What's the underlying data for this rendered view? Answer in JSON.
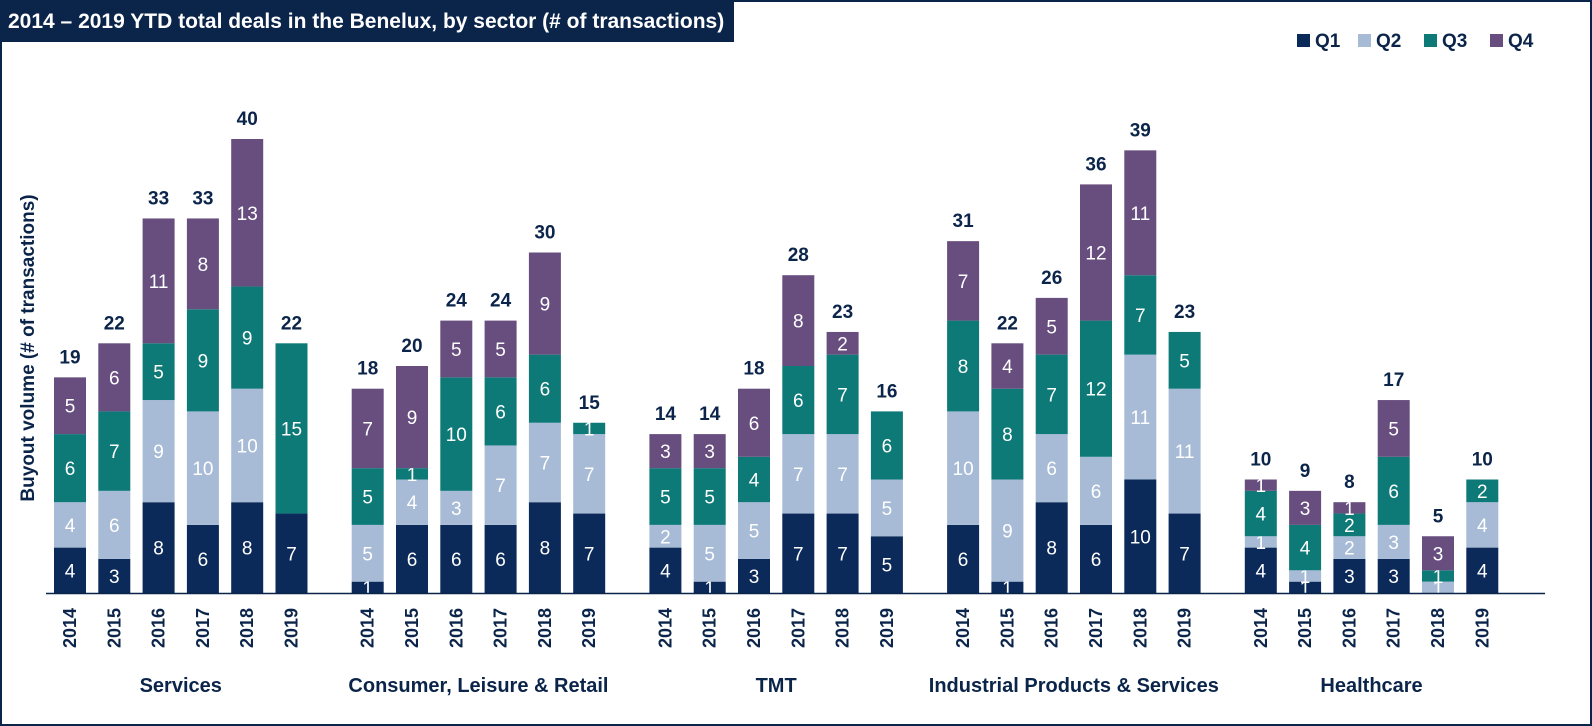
{
  "chart_data": {
    "type": "bar",
    "stacked": true,
    "title": "2014 – 2019 YTD total deals in the Benelux, by sector (# of transactions)",
    "ylabel": "Buyout volume (# of transactions)",
    "xlabel": "",
    "legend_position": "top-right",
    "grid": false,
    "ylim": [
      0,
      40
    ],
    "colors": {
      "Q1": "#0b2a59",
      "Q2": "#a7bbd6",
      "Q3": "#0e7a77",
      "Q4": "#674e7f"
    },
    "series_names": [
      "Q1",
      "Q2",
      "Q3",
      "Q4"
    ],
    "groups": [
      {
        "name": "Services",
        "bars": [
          {
            "year": "2014",
            "values": [
              4,
              4,
              6,
              5
            ],
            "total": 19
          },
          {
            "year": "2015",
            "values": [
              3,
              6,
              7,
              6
            ],
            "total": 22
          },
          {
            "year": "2016",
            "values": [
              8,
              9,
              5,
              11
            ],
            "total": 33
          },
          {
            "year": "2017",
            "values": [
              6,
              10,
              9,
              8
            ],
            "total": 33
          },
          {
            "year": "2018",
            "values": [
              8,
              10,
              9,
              13
            ],
            "total": 40
          },
          {
            "year": "2019",
            "values": [
              7,
              0,
              15,
              0
            ],
            "total": 22
          }
        ]
      },
      {
        "name": "Consumer, Leisure & Retail",
        "bars": [
          {
            "year": "2014",
            "values": [
              1,
              5,
              5,
              7
            ],
            "total": 18
          },
          {
            "year": "2015",
            "values": [
              6,
              4,
              1,
              9
            ],
            "total": 20
          },
          {
            "year": "2016",
            "values": [
              6,
              3,
              10,
              5
            ],
            "total": 24
          },
          {
            "year": "2017",
            "values": [
              6,
              7,
              6,
              5
            ],
            "total": 24
          },
          {
            "year": "2018",
            "values": [
              8,
              7,
              6,
              9
            ],
            "total": 30
          },
          {
            "year": "2019",
            "values": [
              7,
              7,
              1,
              0
            ],
            "total": 15
          }
        ]
      },
      {
        "name": "TMT",
        "bars": [
          {
            "year": "2014",
            "values": [
              4,
              2,
              5,
              3
            ],
            "total": 14
          },
          {
            "year": "2015",
            "values": [
              1,
              5,
              5,
              3
            ],
            "total": 14
          },
          {
            "year": "2016",
            "values": [
              3,
              5,
              4,
              6
            ],
            "total": 18
          },
          {
            "year": "2017",
            "values": [
              7,
              7,
              6,
              8
            ],
            "total": 28
          },
          {
            "year": "2018",
            "values": [
              7,
              7,
              7,
              2
            ],
            "total": 23
          },
          {
            "year": "2019",
            "values": [
              5,
              5,
              6,
              0
            ],
            "total": 16
          }
        ]
      },
      {
        "name": "Industrial Products & Services",
        "bars": [
          {
            "year": "2014",
            "values": [
              6,
              10,
              8,
              7
            ],
            "total": 31
          },
          {
            "year": "2015",
            "values": [
              1,
              9,
              8,
              4
            ],
            "total": 22
          },
          {
            "year": "2016",
            "values": [
              8,
              6,
              7,
              5
            ],
            "total": 26
          },
          {
            "year": "2017",
            "values": [
              6,
              6,
              12,
              12
            ],
            "total": 36
          },
          {
            "year": "2018",
            "values": [
              10,
              11,
              7,
              11
            ],
            "total": 39
          },
          {
            "year": "2019",
            "values": [
              7,
              11,
              5,
              0
            ],
            "total": 23
          }
        ]
      },
      {
        "name": "Healthcare",
        "bars": [
          {
            "year": "2014",
            "values": [
              4,
              1,
              4,
              1
            ],
            "total": 10
          },
          {
            "year": "2015",
            "values": [
              1,
              1,
              4,
              3
            ],
            "total": 9
          },
          {
            "year": "2016",
            "values": [
              3,
              2,
              2,
              1
            ],
            "total": 8
          },
          {
            "year": "2017",
            "values": [
              3,
              3,
              6,
              5
            ],
            "total": 17
          },
          {
            "year": "2018",
            "values": [
              0,
              1,
              1,
              3
            ],
            "total": 5
          },
          {
            "year": "2019",
            "values": [
              4,
              4,
              2,
              0
            ],
            "total": 10
          }
        ]
      }
    ]
  }
}
